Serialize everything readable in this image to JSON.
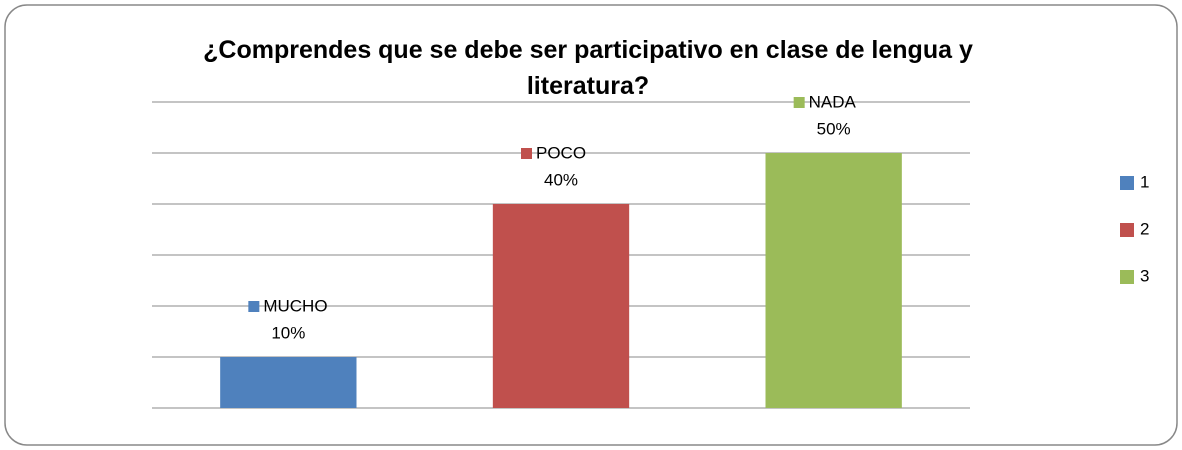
{
  "chart_data": {
    "type": "bar",
    "title": "¿Comprendes que se debe ser participativo en clase de lengua y literatura?",
    "categories": [
      "1",
      "2",
      "3"
    ],
    "point_names": [
      "MUCHO",
      "POCO",
      "NADA"
    ],
    "values": [
      10,
      40,
      50
    ],
    "value_labels": [
      "10%",
      "40%",
      "50%"
    ],
    "colors": [
      "#4f81bd",
      "#c0504d",
      "#9bbb59"
    ],
    "ylim": [
      0,
      60
    ],
    "yticks": [
      0,
      10,
      20,
      30,
      40,
      50,
      60
    ],
    "grid": true,
    "legend": "right"
  }
}
